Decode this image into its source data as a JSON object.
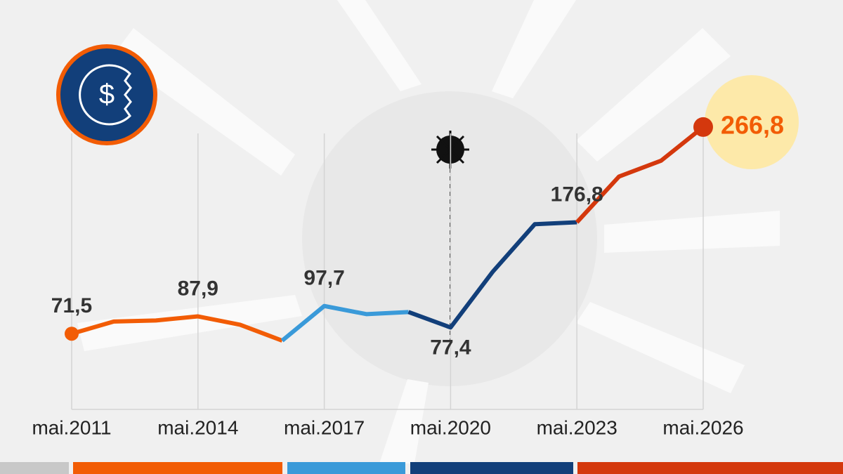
{
  "chart_data": {
    "type": "line",
    "xlim": [
      2011,
      2026
    ],
    "ylim": [
      0,
      280
    ],
    "xticks": [
      {
        "value": 2011,
        "label": "mai.2011"
      },
      {
        "value": 2014,
        "label": "mai.2014"
      },
      {
        "value": 2017,
        "label": "mai.2017"
      },
      {
        "value": 2020,
        "label": "mai.2020"
      },
      {
        "value": 2023,
        "label": "mai.2023"
      },
      {
        "value": 2026,
        "label": "mai.2026"
      }
    ],
    "grid": true,
    "series": [
      {
        "color": "#f25c05",
        "x": [
          2011,
          2012,
          2013,
          2014,
          2015,
          2016
        ],
        "values": [
          71.5,
          83,
          84,
          87.9,
          80,
          65
        ],
        "value_labels": [
          "71,5",
          null,
          null,
          "87,9",
          null,
          null
        ]
      },
      {
        "color": "#3a9ad9",
        "x": [
          2016,
          2017,
          2018,
          2019
        ],
        "values": [
          65,
          97.7,
          90,
          92
        ],
        "value_labels": [
          null,
          "97,7",
          null,
          null
        ]
      },
      {
        "color": "#123f7a",
        "x": [
          2019,
          2020,
          2021,
          2022,
          2023
        ],
        "values": [
          92,
          77.4,
          130,
          175,
          176.8
        ],
        "value_labels": [
          null,
          "77,4",
          null,
          null,
          "176,8"
        ]
      },
      {
        "color": "#d4380d",
        "x": [
          2023,
          2024,
          2025,
          2026
        ],
        "values": [
          176.8,
          220,
          235,
          266.8
        ],
        "value_labels": [
          null,
          null,
          null,
          "266,8"
        ]
      }
    ]
  }
}
